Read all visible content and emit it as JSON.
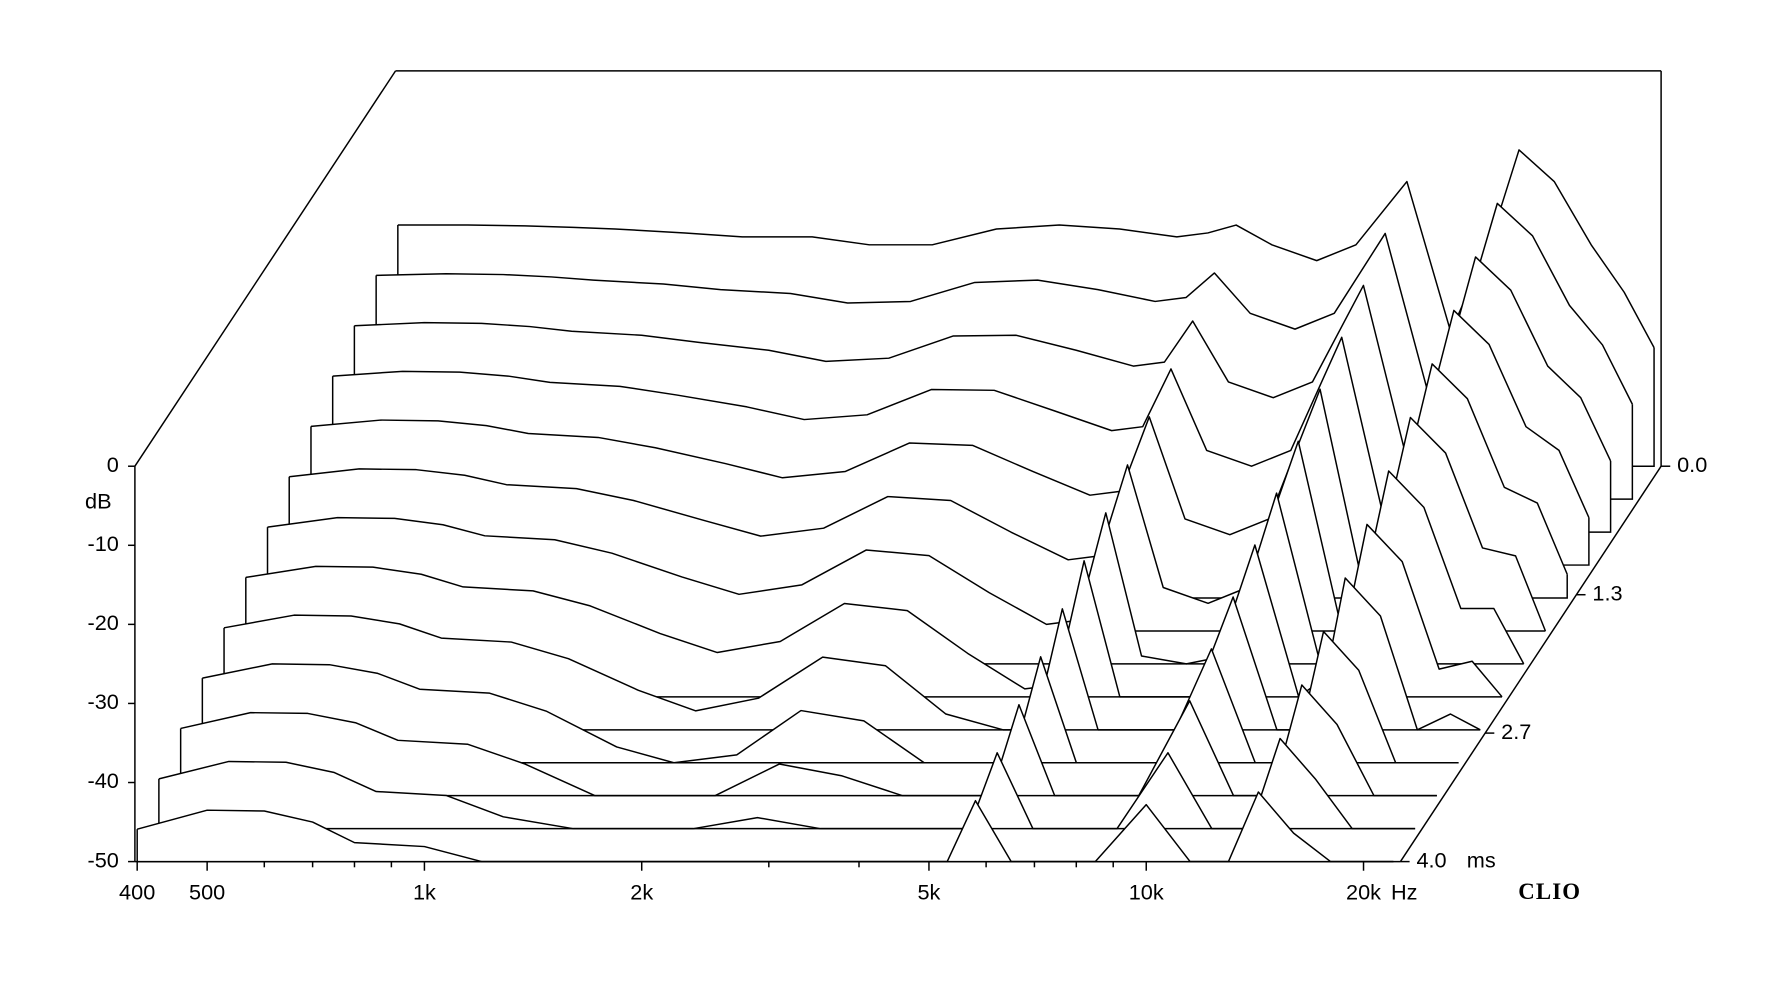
{
  "chart_data": {
    "type": "waterfall",
    "y_label": "dB",
    "x_unit": "Hz",
    "z_unit": "ms",
    "brand": "CLIO",
    "log_x": true,
    "color": "#000000",
    "xlim": [
      400,
      22500
    ],
    "ylim": [
      -50,
      0
    ],
    "zlim": [
      0,
      4
    ],
    "xticks": [
      400,
      500,
      {
        "value": 1000,
        "label": "1k"
      },
      {
        "value": 2000,
        "label": "2k"
      },
      {
        "value": 5000,
        "label": "5k"
      },
      {
        "value": 10000,
        "label": "10k"
      },
      {
        "value": 20000,
        "label": "20k"
      }
    ],
    "xminor": [
      600,
      700,
      800,
      900,
      3000,
      4000,
      6000,
      7000,
      8000,
      9000
    ],
    "yticks": [
      0,
      -10,
      -20,
      -30,
      -40,
      -50
    ],
    "zticks": [
      {
        "value": 0,
        "label": "0.0"
      },
      {
        "value": 1.3,
        "label": "1.3"
      },
      {
        "value": 2.7,
        "label": "2.7"
      },
      {
        "value": 4,
        "label": "4.0"
      }
    ],
    "x": [
      400,
      500,
      600,
      700,
      800,
      1000,
      1200,
      1500,
      1800,
      2200,
      2700,
      3300,
      4000,
      4800,
      5300,
      5800,
      6500,
      7500,
      8500,
      10000,
      11500,
      13000,
      14300,
      16000,
      18000,
      20000,
      22000
    ],
    "z": [
      0,
      0.333,
      0.667,
      1,
      1.333,
      1.667,
      2,
      2.333,
      2.667,
      3,
      3.333,
      3.667,
      4
    ],
    "series": [
      {
        "values": [
          -19.5,
          -19.5,
          -19.6,
          -19.8,
          -20,
          -20.5,
          -21,
          -21,
          -22,
          -22,
          -20,
          -19.5,
          -20,
          -21,
          -20.5,
          -19.5,
          -22,
          -24,
          -22,
          -14,
          -33,
          -22,
          -10,
          -14,
          -22,
          -28,
          -35
        ]
      },
      {
        "values": [
          -21.7,
          -21.5,
          -21.6,
          -21.9,
          -22.3,
          -22.8,
          -23.5,
          -24,
          -25.2,
          -25,
          -22.6,
          -22.3,
          -23.5,
          -25,
          -24.5,
          -21.4,
          -26.5,
          -28.5,
          -26.5,
          -16.4,
          -37,
          -25.5,
          -12.6,
          -16.7,
          -25.5,
          -30.5,
          -38
        ]
      },
      {
        "values": [
          -23.9,
          -23.5,
          -23.6,
          -24,
          -24.6,
          -25.1,
          -26,
          -27,
          -28.4,
          -28,
          -25.2,
          -25.1,
          -27,
          -29,
          -28.5,
          -23.3,
          -31,
          -33,
          -31,
          -18.8,
          -41,
          -29,
          -15.2,
          -19.4,
          -29,
          -33,
          -41
        ]
      },
      {
        "values": [
          -26.1,
          -25.5,
          -25.6,
          -26.1,
          -26.9,
          -27.4,
          -28.5,
          -30,
          -31.6,
          -31,
          -27.8,
          -27.9,
          -30.5,
          -33,
          -32.5,
          -25.2,
          -35.5,
          -37.5,
          -35.5,
          -21.2,
          -45,
          -32.5,
          -17.8,
          -22.1,
          -32.5,
          -35.5,
          -44
        ]
      },
      {
        "values": [
          -28.3,
          -27.5,
          -27.6,
          -28.2,
          -29.2,
          -29.7,
          -31,
          -33,
          -34.8,
          -34,
          -30.4,
          -30.7,
          -34,
          -37,
          -36.5,
          -27.1,
          -40,
          -42,
          -40,
          -23.6,
          -49,
          -36,
          -20.4,
          -24.8,
          -36,
          -38,
          -47
        ]
      },
      {
        "values": [
          -30.5,
          -29.5,
          -29.6,
          -30.3,
          -31.5,
          -32,
          -33.5,
          -36,
          -38,
          -37,
          -33,
          -33.5,
          -37.5,
          -41,
          -40.5,
          -29,
          -44.5,
          -46.5,
          -44.5,
          -26,
          -50,
          -39.5,
          -23,
          -27.5,
          -39.5,
          -40.5,
          -50
        ]
      },
      {
        "values": [
          -32.7,
          -31.5,
          -31.6,
          -32.4,
          -33.8,
          -34.3,
          -36,
          -39,
          -41.2,
          -40,
          -35.6,
          -36.3,
          -41,
          -45,
          -44.5,
          -30.9,
          -49,
          -50,
          -49,
          -28.4,
          -50,
          -43,
          -25.6,
          -30.2,
          -43,
          -43,
          -50
        ]
      },
      {
        "values": [
          -34.9,
          -33.5,
          -33.6,
          -34.5,
          -36.1,
          -36.6,
          -38.5,
          -42,
          -44.4,
          -43,
          -38.2,
          -39.1,
          -44.5,
          -49,
          -48.5,
          -32.8,
          -50,
          -50,
          -50,
          -30.8,
          -50,
          -46.5,
          -28.2,
          -32.9,
          -46.5,
          -45.5,
          -50
        ]
      },
      {
        "values": [
          -37.1,
          -35.5,
          -35.6,
          -36.6,
          -38.4,
          -38.9,
          -41,
          -45,
          -47.6,
          -46,
          -40.8,
          -41.9,
          -48,
          -50,
          -50,
          -34.7,
          -50,
          -50,
          -50,
          -33.2,
          -50,
          -50,
          -30.8,
          -35.6,
          -50,
          -48,
          -50
        ]
      },
      {
        "values": [
          -39.3,
          -37.5,
          -37.6,
          -38.7,
          -40.7,
          -41.2,
          -43.5,
          -48,
          -50,
          -49,
          -43.4,
          -44.7,
          -50,
          -50,
          -50,
          -36.6,
          -50,
          -50,
          -50,
          -35.6,
          -50,
          -50,
          -33.4,
          -38.3,
          -50,
          -50,
          -50
        ]
      },
      {
        "values": [
          -41.5,
          -39.5,
          -39.6,
          -40.8,
          -43,
          -43.5,
          -46,
          -50,
          -50,
          -50,
          -46,
          -47.5,
          -50,
          -50,
          -50,
          -38.5,
          -50,
          -50,
          -50,
          -38,
          -50,
          -50,
          -36,
          -41,
          -50,
          -50,
          -50
        ]
      },
      {
        "values": [
          -43.7,
          -41.5,
          -41.6,
          -42.9,
          -45.3,
          -45.8,
          -48.5,
          -50,
          -50,
          -50,
          -48.6,
          -50,
          -50,
          -50,
          -50,
          -40.4,
          -50,
          -50,
          -50,
          -40.4,
          -50,
          -50,
          -38.6,
          -43.7,
          -50,
          -50,
          -50
        ]
      },
      {
        "values": [
          -45.9,
          -43.5,
          -43.6,
          -45,
          -47.6,
          -48.1,
          -50,
          -50,
          -50,
          -50,
          -50,
          -50,
          -50,
          -50,
          -50,
          -42.3,
          -50,
          -50,
          -50,
          -42.8,
          -50,
          -50,
          -41.2,
          -46.4,
          -50,
          -50,
          -50
        ]
      }
    ]
  }
}
